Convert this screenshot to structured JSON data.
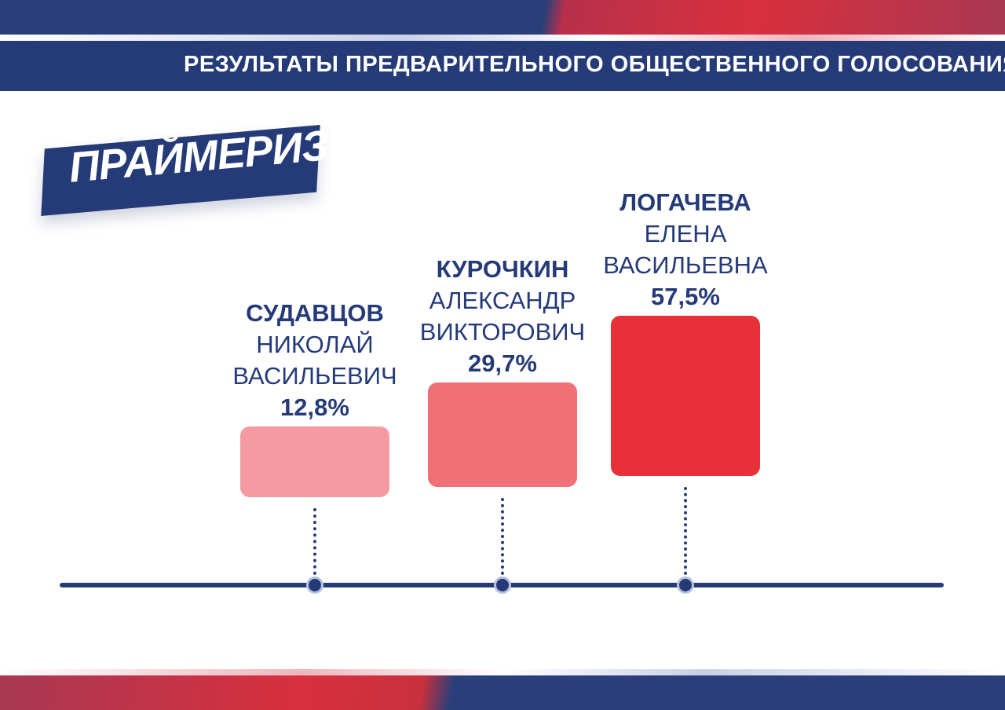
{
  "header": {
    "title": "РЕЗУЛЬТАТЫ ПРЕДВАРИТЕЛЬНОГО ОБЩЕСТВЕННОГО ГОЛОСОВАНИЯ"
  },
  "badge": {
    "label": "ПРАЙМЕРИЗ"
  },
  "colors": {
    "navy": "#253b78",
    "bar_light": "#f59aa0",
    "bar_medium": "#f07077",
    "bar_strong": "#e83038"
  },
  "chart_data": {
    "type": "bar",
    "title": "",
    "categories": [
      "СУДАВЦОВ НИКОЛАЙ ВАСИЛЬЕВИЧ",
      "КУРОЧКИН АЛЕКСАНДР ВИКТОРОВИЧ",
      "ЛОГАЧЕВА ЕЛЕНА ВАСИЛЬЕВНА"
    ],
    "values": [
      12.8,
      29.7,
      57.5
    ],
    "unit": "%",
    "grid": false,
    "candidates": [
      {
        "surname": "СУДАВЦОВ",
        "given1": "НИКОЛАЙ",
        "given2": "ВАСИЛЬЕВИЧ",
        "value": 12.8,
        "value_label": "12,8%",
        "color": "#f59aa0"
      },
      {
        "surname": "КУРОЧКИН",
        "given1": "АЛЕКСАНДР",
        "given2": "ВИКТОРОВИЧ",
        "value": 29.7,
        "value_label": "29,7%",
        "color": "#f07077"
      },
      {
        "surname": "ЛОГАЧЕВА",
        "given1": "ЕЛЕНА",
        "given2": "ВАСИЛЬЕВНА",
        "value": 57.5,
        "value_label": "57,5%",
        "color": "#e83038"
      }
    ]
  }
}
